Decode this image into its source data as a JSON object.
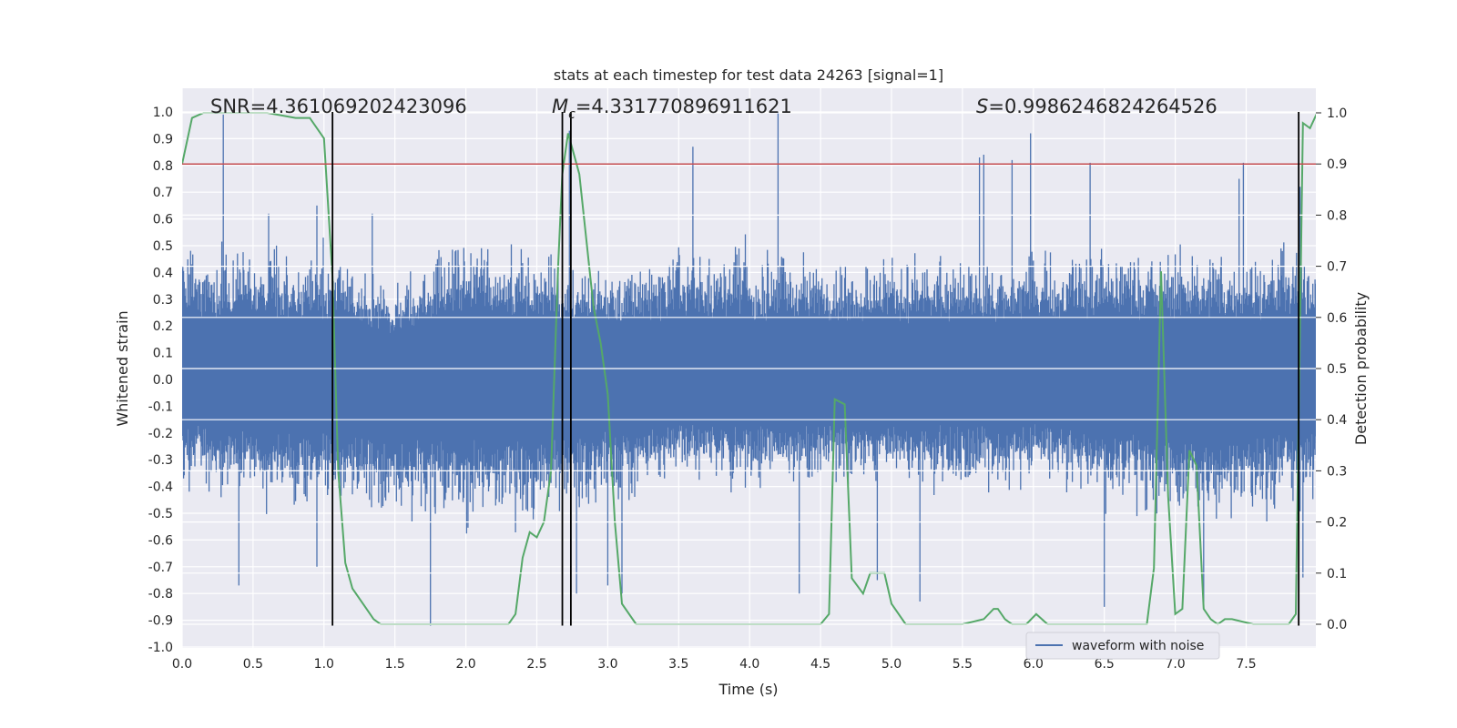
{
  "chart_data": {
    "type": "line",
    "title": "stats at each timestep for test data 24263 [signal=1]",
    "xlabel": "Time (s)",
    "ylabel": "Whitened strain",
    "y2label": "Detection probability",
    "xlim": [
      0,
      8
    ],
    "ylim": [
      -1.0,
      1.0
    ],
    "y2lim": [
      -0.045,
      1.0
    ],
    "xticks": [
      "0.0",
      "0.5",
      "1.0",
      "1.5",
      "2.0",
      "2.5",
      "3.0",
      "3.5",
      "4.0",
      "4.5",
      "5.0",
      "5.5",
      "6.0",
      "6.5",
      "7.0",
      "7.5"
    ],
    "yticks": [
      "1.0",
      "0.9",
      "0.8",
      "0.7",
      "0.6",
      "0.5",
      "0.4",
      "0.3",
      "0.2",
      "0.1",
      "0.0",
      "-0.1",
      "-0.2",
      "-0.3",
      "-0.4",
      "-0.5",
      "-0.6",
      "-0.7",
      "-0.8",
      "-0.9",
      "-1.0"
    ],
    "y2ticks": [
      "1.0",
      "0.9",
      "0.8",
      "0.7",
      "0.6",
      "0.5",
      "0.4",
      "0.3",
      "0.2",
      "0.1",
      "0.0"
    ],
    "grid": true,
    "legend": {
      "position": "lower-right",
      "entries": [
        "waveform with noise"
      ]
    },
    "annotations": {
      "snr": "SNR=4.361069202423096",
      "mc_symbol": "M",
      "mc_sub": "c",
      "mc_value": "=4.331770896911621",
      "s_symbol": "S",
      "s_value": "=0.9986246824264526"
    },
    "series": [
      {
        "name": "waveform with noise",
        "kind": "noise-envelope",
        "axis": "left",
        "color": "#4c72b0",
        "upper_envelope": [
          [
            0.0,
            0.4
          ],
          [
            0.5,
            0.4
          ],
          [
            1.0,
            0.4
          ],
          [
            1.5,
            0.3
          ],
          [
            2.0,
            0.45
          ],
          [
            2.5,
            0.4
          ],
          [
            3.0,
            0.35
          ],
          [
            3.5,
            0.4
          ],
          [
            4.0,
            0.4
          ],
          [
            4.5,
            0.38
          ],
          [
            5.0,
            0.38
          ],
          [
            5.5,
            0.38
          ],
          [
            6.0,
            0.38
          ],
          [
            6.5,
            0.4
          ],
          [
            7.0,
            0.4
          ],
          [
            7.5,
            0.4
          ],
          [
            8.0,
            0.4
          ]
        ],
        "lower_envelope": [
          [
            0.0,
            -0.3
          ],
          [
            0.5,
            -0.35
          ],
          [
            1.0,
            -0.35
          ],
          [
            1.5,
            -0.4
          ],
          [
            2.0,
            -0.4
          ],
          [
            2.5,
            -0.4
          ],
          [
            3.0,
            -0.35
          ],
          [
            3.5,
            -0.3
          ],
          [
            4.0,
            -0.3
          ],
          [
            4.5,
            -0.3
          ],
          [
            5.0,
            -0.3
          ],
          [
            5.5,
            -0.3
          ],
          [
            6.0,
            -0.3
          ],
          [
            6.5,
            -0.35
          ],
          [
            7.0,
            -0.4
          ],
          [
            7.5,
            -0.4
          ],
          [
            8.0,
            -0.35
          ]
        ],
        "peaks": [
          [
            0.29,
            0.99
          ],
          [
            0.61,
            0.62
          ],
          [
            0.95,
            0.65
          ],
          [
            2.73,
            0.93
          ],
          [
            3.6,
            0.87
          ],
          [
            4.2,
            1.0
          ],
          [
            5.62,
            0.83
          ],
          [
            5.65,
            0.84
          ],
          [
            5.85,
            0.82
          ],
          [
            5.98,
            0.92
          ],
          [
            6.4,
            0.81
          ],
          [
            7.48,
            0.81
          ],
          [
            7.88,
            0.72
          ],
          [
            7.45,
            0.75
          ],
          [
            1.34,
            0.62
          ]
        ],
        "troughs": [
          [
            0.4,
            -0.77
          ],
          [
            0.95,
            -0.7
          ],
          [
            1.75,
            -0.92
          ],
          [
            2.78,
            -0.8
          ],
          [
            3.0,
            -0.77
          ],
          [
            3.1,
            -0.8
          ],
          [
            4.35,
            -0.8
          ],
          [
            4.9,
            -0.75
          ],
          [
            5.2,
            -0.83
          ],
          [
            6.5,
            -0.85
          ],
          [
            7.2,
            -0.85
          ],
          [
            7.9,
            -0.74
          ]
        ]
      },
      {
        "name": "Detection probability",
        "axis": "right",
        "color": "#55a868",
        "x": [
          0.0,
          0.07,
          0.15,
          0.3,
          0.6,
          0.8,
          0.9,
          1.0,
          1.06,
          1.1,
          1.15,
          1.2,
          1.3,
          1.35,
          1.4,
          1.5,
          1.6,
          1.8,
          2.0,
          2.2,
          2.3,
          2.35,
          2.4,
          2.45,
          2.5,
          2.55,
          2.6,
          2.65,
          2.68,
          2.72,
          2.75,
          2.8,
          2.85,
          2.9,
          2.95,
          3.0,
          3.05,
          3.1,
          3.2,
          3.5,
          4.0,
          4.2,
          4.4,
          4.5,
          4.56,
          4.6,
          4.67,
          4.72,
          4.8,
          4.85,
          4.95,
          5.0,
          5.1,
          5.5,
          5.65,
          5.72,
          5.75,
          5.8,
          5.85,
          5.95,
          6.02,
          6.1,
          6.2,
          6.5,
          6.7,
          6.8,
          6.85,
          6.9,
          6.95,
          7.0,
          7.05,
          7.1,
          7.15,
          7.2,
          7.25,
          7.3,
          7.35,
          7.4,
          7.55,
          7.7,
          7.8,
          7.85,
          7.9,
          7.95,
          8.0
        ],
        "y": [
          0.9,
          0.99,
          1.0,
          1.0,
          1.0,
          0.99,
          0.99,
          0.95,
          0.68,
          0.3,
          0.12,
          0.07,
          0.03,
          0.01,
          0.0,
          0.0,
          0.0,
          0.0,
          0.0,
          0.0,
          0.0,
          0.02,
          0.13,
          0.18,
          0.17,
          0.2,
          0.3,
          0.7,
          0.88,
          0.96,
          0.93,
          0.88,
          0.75,
          0.62,
          0.55,
          0.45,
          0.2,
          0.04,
          0.0,
          0.0,
          0.0,
          0.0,
          0.0,
          0.0,
          0.02,
          0.44,
          0.43,
          0.09,
          0.06,
          0.1,
          0.1,
          0.04,
          0.0,
          0.0,
          0.01,
          0.03,
          0.03,
          0.01,
          0.0,
          0.0,
          0.02,
          0.0,
          0.0,
          0.0,
          0.0,
          0.0,
          0.11,
          0.69,
          0.25,
          0.02,
          0.03,
          0.34,
          0.31,
          0.03,
          0.01,
          0.0,
          0.01,
          0.01,
          0.0,
          0.0,
          0.0,
          0.02,
          0.98,
          0.97,
          1.0
        ]
      },
      {
        "name": "threshold",
        "kind": "hline",
        "axis": "right",
        "color": "#c44e52",
        "y": 0.9
      },
      {
        "name": "markers",
        "kind": "vlines",
        "color": "#000000",
        "x": [
          1.06,
          2.68,
          2.74,
          7.87
        ],
        "y_from": -0.92,
        "y_to": 1.0
      }
    ]
  }
}
